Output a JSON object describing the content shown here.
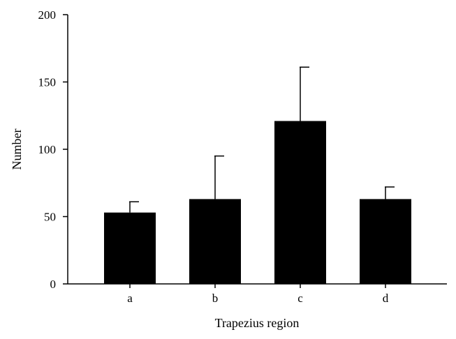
{
  "chart_data": {
    "type": "bar",
    "title": "",
    "xlabel": "Trapezius region",
    "ylabel": "Number",
    "categories": [
      "a",
      "b",
      "c",
      "d"
    ],
    "values": [
      53,
      63,
      121,
      63
    ],
    "error_upper": [
      61,
      95,
      161,
      72
    ],
    "ylim": [
      0,
      200
    ],
    "yticks": [
      0,
      50,
      100,
      150,
      200
    ],
    "ytick_labels": [
      "0",
      "50",
      "100",
      "150",
      "200"
    ],
    "grid": false,
    "legend": "none",
    "colors": {
      "bar": "#000000",
      "axis": "#000000",
      "background": "#ffffff"
    }
  }
}
